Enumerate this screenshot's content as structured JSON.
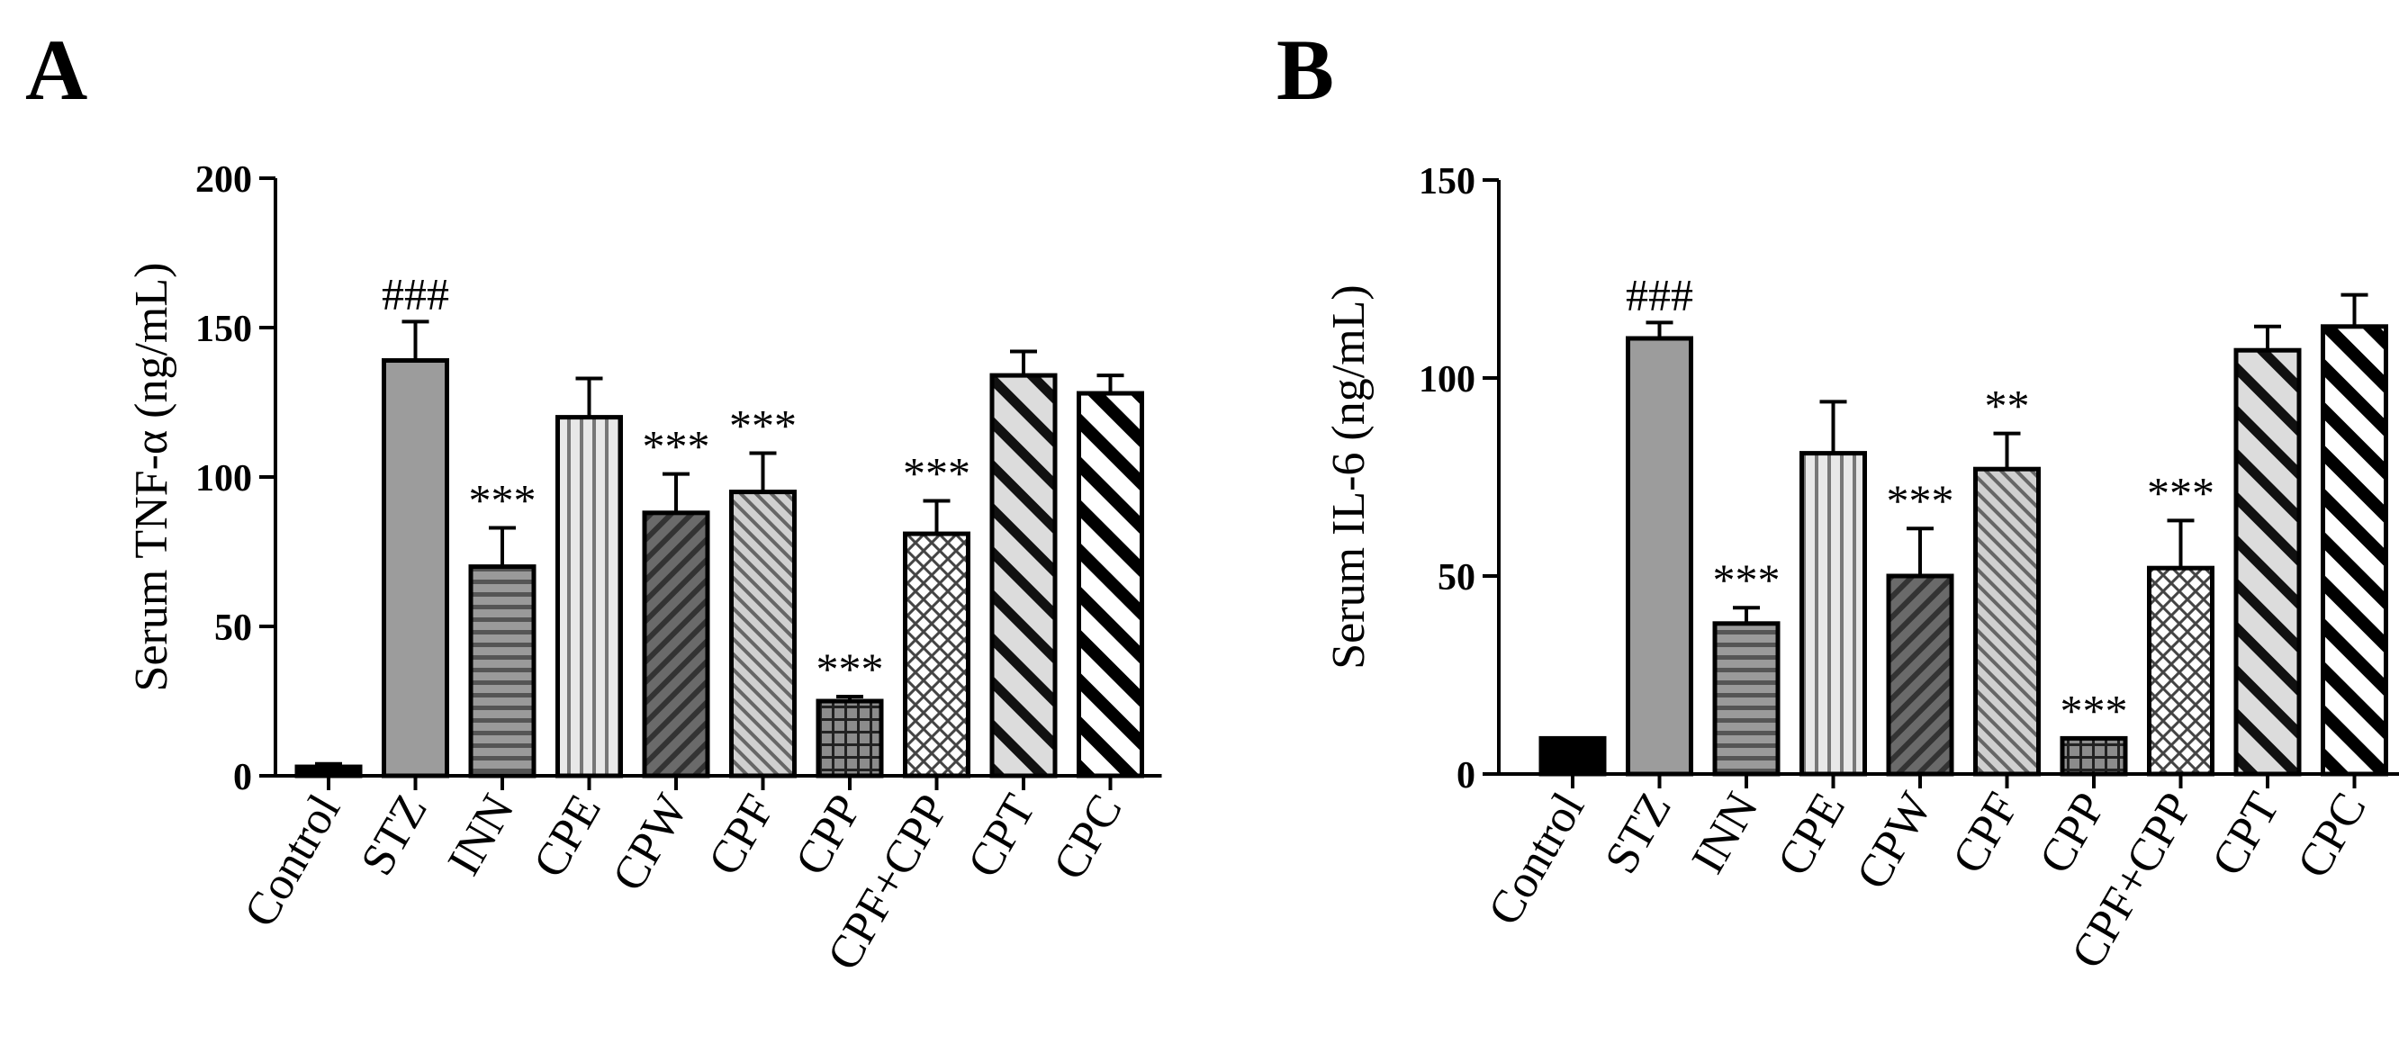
{
  "chart_data": [
    {
      "type": "bar",
      "panel": "A",
      "ylabel": "Serum TNF-α (ng/mL)",
      "ylim": [
        0,
        200
      ],
      "yticks": [
        0,
        50,
        100,
        150,
        200
      ],
      "categories": [
        "Control",
        "STZ",
        "INN",
        "CPE",
        "CPW",
        "CPF",
        "CPP",
        "CPF+CPP",
        "CPT",
        "CPC"
      ],
      "values": [
        3,
        139,
        70,
        120,
        88,
        95,
        25,
        81,
        134,
        128
      ],
      "errors": [
        1,
        13,
        13,
        13,
        13,
        13,
        1.5,
        11,
        8,
        6
      ],
      "significance": [
        "",
        "###",
        "***",
        "",
        "***",
        "***",
        "***",
        "***",
        "",
        ""
      ],
      "patterns": [
        "black",
        "gray",
        "hlines",
        "vlines",
        "diag-dark",
        "diag-light",
        "grid",
        "cross",
        "diag-wide-light",
        "diag-wide"
      ]
    },
    {
      "type": "bar",
      "panel": "B",
      "ylabel": "Serum IL-6 (ng/mL)",
      "ylim": [
        0,
        150
      ],
      "yticks": [
        0,
        50,
        100,
        150
      ],
      "categories": [
        "Control",
        "STZ",
        "INN",
        "CPE",
        "CPW",
        "CPF",
        "CPP",
        "CPF+CPP",
        "CPT",
        "CPC"
      ],
      "values": [
        9,
        110,
        38,
        81,
        50,
        77,
        9,
        52,
        107,
        113
      ],
      "errors": [
        0.5,
        4,
        4,
        13,
        12,
        9,
        0.5,
        12,
        6,
        8
      ],
      "significance": [
        "",
        "###",
        "***",
        "",
        "***",
        "**",
        "***",
        "***",
        "",
        ""
      ],
      "patterns": [
        "black",
        "gray",
        "hlines",
        "vlines",
        "diag-dark",
        "diag-light",
        "grid",
        "cross",
        "diag-wide-light",
        "diag-wide"
      ]
    }
  ]
}
